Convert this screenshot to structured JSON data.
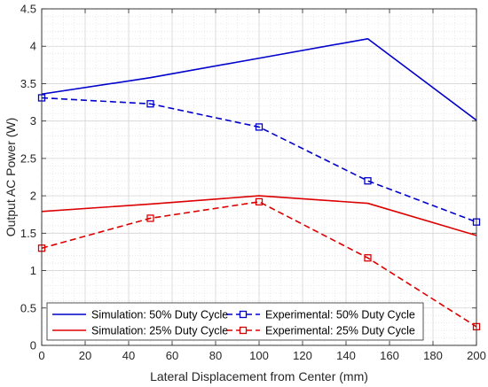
{
  "chart_data": {
    "type": "line",
    "xlabel": "Lateral Displacement from Center (mm)",
    "ylabel": "Output AC Power (W)",
    "xlim": [
      0,
      200
    ],
    "ylim": [
      0,
      4.5
    ],
    "xticks": [
      0,
      20,
      40,
      60,
      80,
      100,
      120,
      140,
      160,
      180,
      200
    ],
    "yticks": [
      0,
      0.5,
      1,
      1.5,
      2,
      2.5,
      3,
      3.5,
      4,
      4.5
    ],
    "xtick_labels": [
      "0",
      "20",
      "40",
      "60",
      "80",
      "100",
      "120",
      "140",
      "160",
      "180",
      "200"
    ],
    "ytick_labels": [
      "0",
      "0.5",
      "1",
      "1.5",
      "2",
      "2.5",
      "3",
      "3.5",
      "4",
      "4.5"
    ],
    "grid": true,
    "legend_position": "bottom-left",
    "series": [
      {
        "name": "Simulation: 50% Duty Cycle",
        "color": "#0000cc",
        "style": "solid",
        "marker": "none",
        "x": [
          0,
          50,
          100,
          150,
          200
        ],
        "y": [
          3.36,
          3.58,
          3.84,
          4.1,
          3.01
        ]
      },
      {
        "name": "Experimental: 50% Duty Cycle",
        "color": "#0000cc",
        "style": "dashed",
        "marker": "square",
        "x": [
          0,
          50,
          100,
          150,
          200
        ],
        "y": [
          3.31,
          3.23,
          2.92,
          2.2,
          1.65
        ]
      },
      {
        "name": "Simulation: 25% Duty Cycle",
        "color": "#dd0000",
        "style": "solid",
        "marker": "none",
        "x": [
          0,
          50,
          100,
          150,
          200
        ],
        "y": [
          1.79,
          1.89,
          2.0,
          1.9,
          1.47
        ]
      },
      {
        "name": "Experimental: 25% Duty Cycle",
        "color": "#dd0000",
        "style": "dashed",
        "marker": "square",
        "x": [
          0,
          50,
          100,
          150,
          200
        ],
        "y": [
          1.3,
          1.7,
          1.92,
          1.17,
          0.25
        ]
      }
    ]
  }
}
